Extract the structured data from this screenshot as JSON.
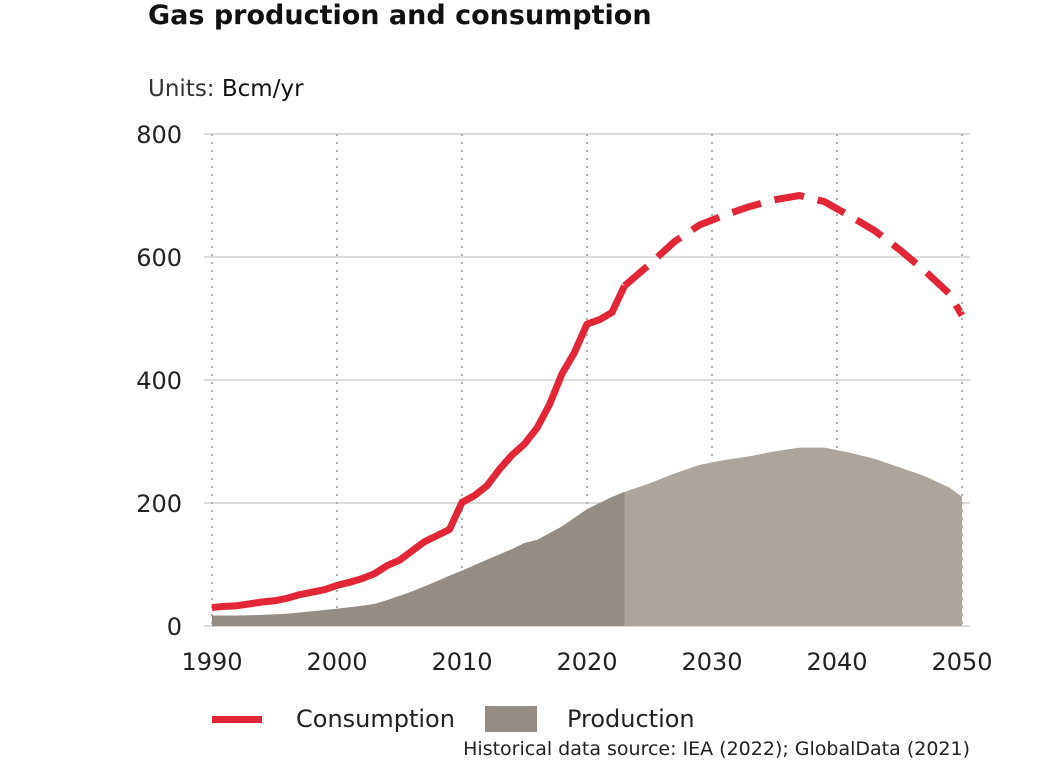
{
  "header": {
    "title": "Gas production and consumption",
    "units_prefix": "Units:",
    "units_value": "Bcm/yr"
  },
  "legend": {
    "consumption": "Consumption",
    "production": "Production"
  },
  "source": "Historical data source: IEA (2022); GlobalData (2021)",
  "colors": {
    "consumption": "#e32636",
    "production_historical": "#958c83",
    "production_projected": "#ada59b",
    "gridline": "#c8c8c8",
    "vertical_gridline": "#b0b0b0"
  },
  "chart_data": {
    "type": "line",
    "xlim": [
      1990,
      2050
    ],
    "ylim": [
      0,
      800
    ],
    "x_ticks": [
      "1990",
      "2000",
      "2010",
      "2020",
      "2030",
      "2040",
      "2050"
    ],
    "y_ticks": [
      "0",
      "200",
      "400",
      "600",
      "800"
    ],
    "grid": true,
    "legend_position": "bottom",
    "historical_until": 2023,
    "series": [
      {
        "name": "Consumption",
        "type": "line",
        "style_historical": "solid",
        "style_projected": "dashed",
        "points": [
          [
            1990,
            30
          ],
          [
            1991,
            32
          ],
          [
            1992,
            33
          ],
          [
            1993,
            36
          ],
          [
            1994,
            39
          ],
          [
            1995,
            41
          ],
          [
            1996,
            45
          ],
          [
            1997,
            51
          ],
          [
            1998,
            55
          ],
          [
            1999,
            59
          ],
          [
            2000,
            66
          ],
          [
            2001,
            71
          ],
          [
            2002,
            77
          ],
          [
            2003,
            85
          ],
          [
            2004,
            98
          ],
          [
            2005,
            107
          ],
          [
            2006,
            122
          ],
          [
            2007,
            137
          ],
          [
            2008,
            147
          ],
          [
            2009,
            157
          ],
          [
            2010,
            201
          ],
          [
            2011,
            212
          ],
          [
            2012,
            228
          ],
          [
            2013,
            255
          ],
          [
            2014,
            278
          ],
          [
            2015,
            296
          ],
          [
            2016,
            322
          ],
          [
            2017,
            360
          ],
          [
            2018,
            410
          ],
          [
            2019,
            445
          ],
          [
            2020,
            491
          ],
          [
            2021,
            498
          ],
          [
            2022,
            510
          ],
          [
            2023,
            553
          ],
          [
            2025,
            588
          ],
          [
            2027,
            625
          ],
          [
            2029,
            652
          ],
          [
            2031,
            668
          ],
          [
            2033,
            682
          ],
          [
            2035,
            693
          ],
          [
            2037,
            700
          ],
          [
            2039,
            690
          ],
          [
            2041,
            667
          ],
          [
            2043,
            643
          ],
          [
            2045,
            612
          ],
          [
            2047,
            578
          ],
          [
            2049,
            540
          ],
          [
            2050,
            505
          ]
        ]
      },
      {
        "name": "Production",
        "type": "area",
        "points": [
          [
            1990,
            17
          ],
          [
            1992,
            17
          ],
          [
            1994,
            18
          ],
          [
            1996,
            20
          ],
          [
            1998,
            24
          ],
          [
            2000,
            28
          ],
          [
            2002,
            33
          ],
          [
            2003,
            36
          ],
          [
            2004,
            42
          ],
          [
            2006,
            56
          ],
          [
            2008,
            73
          ],
          [
            2009,
            82
          ],
          [
            2010,
            90
          ],
          [
            2012,
            108
          ],
          [
            2014,
            125
          ],
          [
            2015,
            135
          ],
          [
            2016,
            140
          ],
          [
            2018,
            162
          ],
          [
            2020,
            190
          ],
          [
            2022,
            210
          ],
          [
            2023,
            218
          ],
          [
            2025,
            232
          ],
          [
            2027,
            248
          ],
          [
            2029,
            262
          ],
          [
            2031,
            270
          ],
          [
            2033,
            276
          ],
          [
            2035,
            284
          ],
          [
            2037,
            290
          ],
          [
            2039,
            290
          ],
          [
            2041,
            282
          ],
          [
            2043,
            272
          ],
          [
            2045,
            258
          ],
          [
            2047,
            244
          ],
          [
            2049,
            225
          ],
          [
            2050,
            210
          ]
        ]
      }
    ]
  }
}
